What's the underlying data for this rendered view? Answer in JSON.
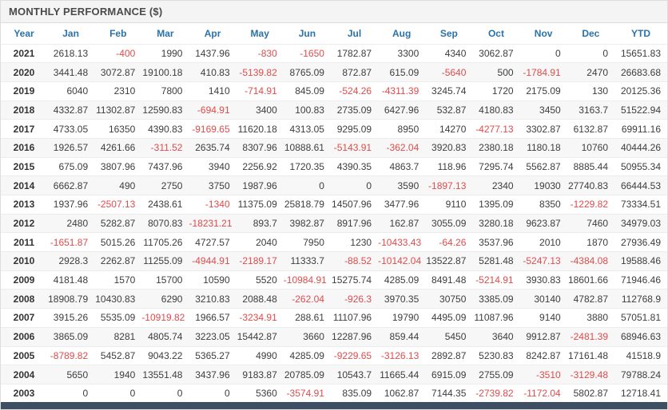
{
  "title": "MONTHLY PERFORMANCE ($)",
  "colors": {
    "header_text": "#2b72a8",
    "negative": "#e04b4b",
    "positive": "#3d3d3d",
    "year_text": "#333333",
    "title_text": "#4a4a4a",
    "title_bg": "#f4f4f4",
    "row_alt_bg": "#f7f7f7",
    "row_border": "#ededed",
    "border": "#dddddd",
    "footer_bar": "#3e4f63"
  },
  "chart_data": {
    "type": "table",
    "title": "MONTHLY PERFORMANCE ($)",
    "columns": [
      "Year",
      "Jan",
      "Feb",
      "Mar",
      "Apr",
      "May",
      "Jun",
      "Jul",
      "Aug",
      "Sep",
      "Oct",
      "Nov",
      "Dec",
      "YTD"
    ],
    "rows": [
      {
        "year": "2021",
        "values": [
          "2618.13",
          "-400",
          "1990",
          "1437.96",
          "-830",
          "-1650",
          "1782.87",
          "3300",
          "4340",
          "3062.87",
          "0",
          "0",
          "15651.83"
        ]
      },
      {
        "year": "2020",
        "values": [
          "3441.48",
          "3072.87",
          "19100.18",
          "410.83",
          "-5139.82",
          "8765.09",
          "872.87",
          "615.09",
          "-5640",
          "500",
          "-1784.91",
          "2470",
          "26683.68"
        ]
      },
      {
        "year": "2019",
        "values": [
          "6040",
          "2310",
          "7800",
          "1410",
          "-714.91",
          "845.09",
          "-524.26",
          "-4311.39",
          "3245.74",
          "1720",
          "2175.09",
          "130",
          "20125.36"
        ]
      },
      {
        "year": "2018",
        "values": [
          "4332.87",
          "11302.87",
          "12590.83",
          "-694.91",
          "3400",
          "100.83",
          "2735.09",
          "6427.96",
          "532.87",
          "4180.83",
          "3450",
          "3163.7",
          "51522.94"
        ]
      },
      {
        "year": "2017",
        "values": [
          "4733.05",
          "16350",
          "4390.83",
          "-9169.65",
          "11620.18",
          "4313.05",
          "9295.09",
          "8950",
          "14270",
          "-4277.13",
          "3302.87",
          "6132.87",
          "69911.16"
        ]
      },
      {
        "year": "2016",
        "values": [
          "1926.57",
          "4261.66",
          "-311.52",
          "2635.74",
          "8307.96",
          "10888.61",
          "-5143.91",
          "-362.04",
          "3920.83",
          "2380.18",
          "1180.18",
          "10760",
          "40444.26"
        ]
      },
      {
        "year": "2015",
        "values": [
          "675.09",
          "3807.96",
          "7437.96",
          "3940",
          "2256.92",
          "1720.35",
          "4390.35",
          "4863.7",
          "118.96",
          "7295.74",
          "5562.87",
          "8885.44",
          "50955.34"
        ]
      },
      {
        "year": "2014",
        "values": [
          "6662.87",
          "490",
          "2750",
          "3750",
          "1987.96",
          "0",
          "0",
          "3590",
          "-1897.13",
          "2340",
          "19030",
          "27740.83",
          "66444.53"
        ]
      },
      {
        "year": "2013",
        "values": [
          "1937.96",
          "-2507.13",
          "2438.61",
          "-1340",
          "11375.09",
          "25818.79",
          "14507.96",
          "3477.96",
          "9110",
          "1395.09",
          "8350",
          "-1229.82",
          "73334.51"
        ]
      },
      {
        "year": "2012",
        "values": [
          "2480",
          "5282.87",
          "8070.83",
          "-18231.21",
          "893.7",
          "3982.87",
          "8917.96",
          "162.87",
          "3055.09",
          "3280.18",
          "9623.87",
          "7460",
          "34979.03"
        ]
      },
      {
        "year": "2011",
        "values": [
          "-1651.87",
          "5015.26",
          "11705.26",
          "4727.57",
          "2040",
          "7950",
          "1230",
          "-10433.43",
          "-64.26",
          "3537.96",
          "2010",
          "1870",
          "27936.49"
        ]
      },
      {
        "year": "2010",
        "values": [
          "2928.3",
          "2262.87",
          "11255.09",
          "-4944.91",
          "-2189.17",
          "11333.7",
          "-88.52",
          "-10142.04",
          "13522.87",
          "5281.48",
          "-5247.13",
          "-4384.08",
          "19588.46"
        ]
      },
      {
        "year": "2009",
        "values": [
          "4181.48",
          "1570",
          "15700",
          "10590",
          "5520",
          "-10984.91",
          "15275.74",
          "4285.09",
          "8491.48",
          "-5214.91",
          "3930.83",
          "18601.66",
          "71946.46"
        ]
      },
      {
        "year": "2008",
        "values": [
          "18908.79",
          "10430.83",
          "6290",
          "3210.83",
          "2088.48",
          "-262.04",
          "-926.3",
          "3970.35",
          "30750",
          "3385.09",
          "30140",
          "4782.87",
          "112768.9"
        ]
      },
      {
        "year": "2007",
        "values": [
          "3915.26",
          "5535.09",
          "-10919.82",
          "1966.57",
          "-3234.91",
          "288.61",
          "11107.96",
          "19790",
          "4495.09",
          "11087.96",
          "9140",
          "3880",
          "57051.81"
        ]
      },
      {
        "year": "2006",
        "values": [
          "3865.09",
          "8281",
          "4805.74",
          "3223.05",
          "15442.87",
          "3660",
          "12287.96",
          "859.44",
          "5450",
          "3640",
          "9912.87",
          "-2481.39",
          "68946.63"
        ]
      },
      {
        "year": "2005",
        "values": [
          "-8789.82",
          "5452.87",
          "9043.22",
          "5365.27",
          "4990",
          "4285.09",
          "-9229.65",
          "-3126.13",
          "2892.87",
          "5230.83",
          "8242.87",
          "17161.48",
          "41518.9"
        ]
      },
      {
        "year": "2004",
        "values": [
          "5650",
          "1940",
          "13551.48",
          "3437.96",
          "9183.87",
          "20785.09",
          "10543.7",
          "11665.44",
          "6915.09",
          "2755.09",
          "-3510",
          "-3129.48",
          "79788.24"
        ]
      },
      {
        "year": "2003",
        "values": [
          "0",
          "0",
          "0",
          "0",
          "5360",
          "-3574.91",
          "835.09",
          "1062.87",
          "7144.35",
          "-2739.82",
          "-1172.04",
          "5802.87",
          "12718.41"
        ]
      }
    ]
  }
}
